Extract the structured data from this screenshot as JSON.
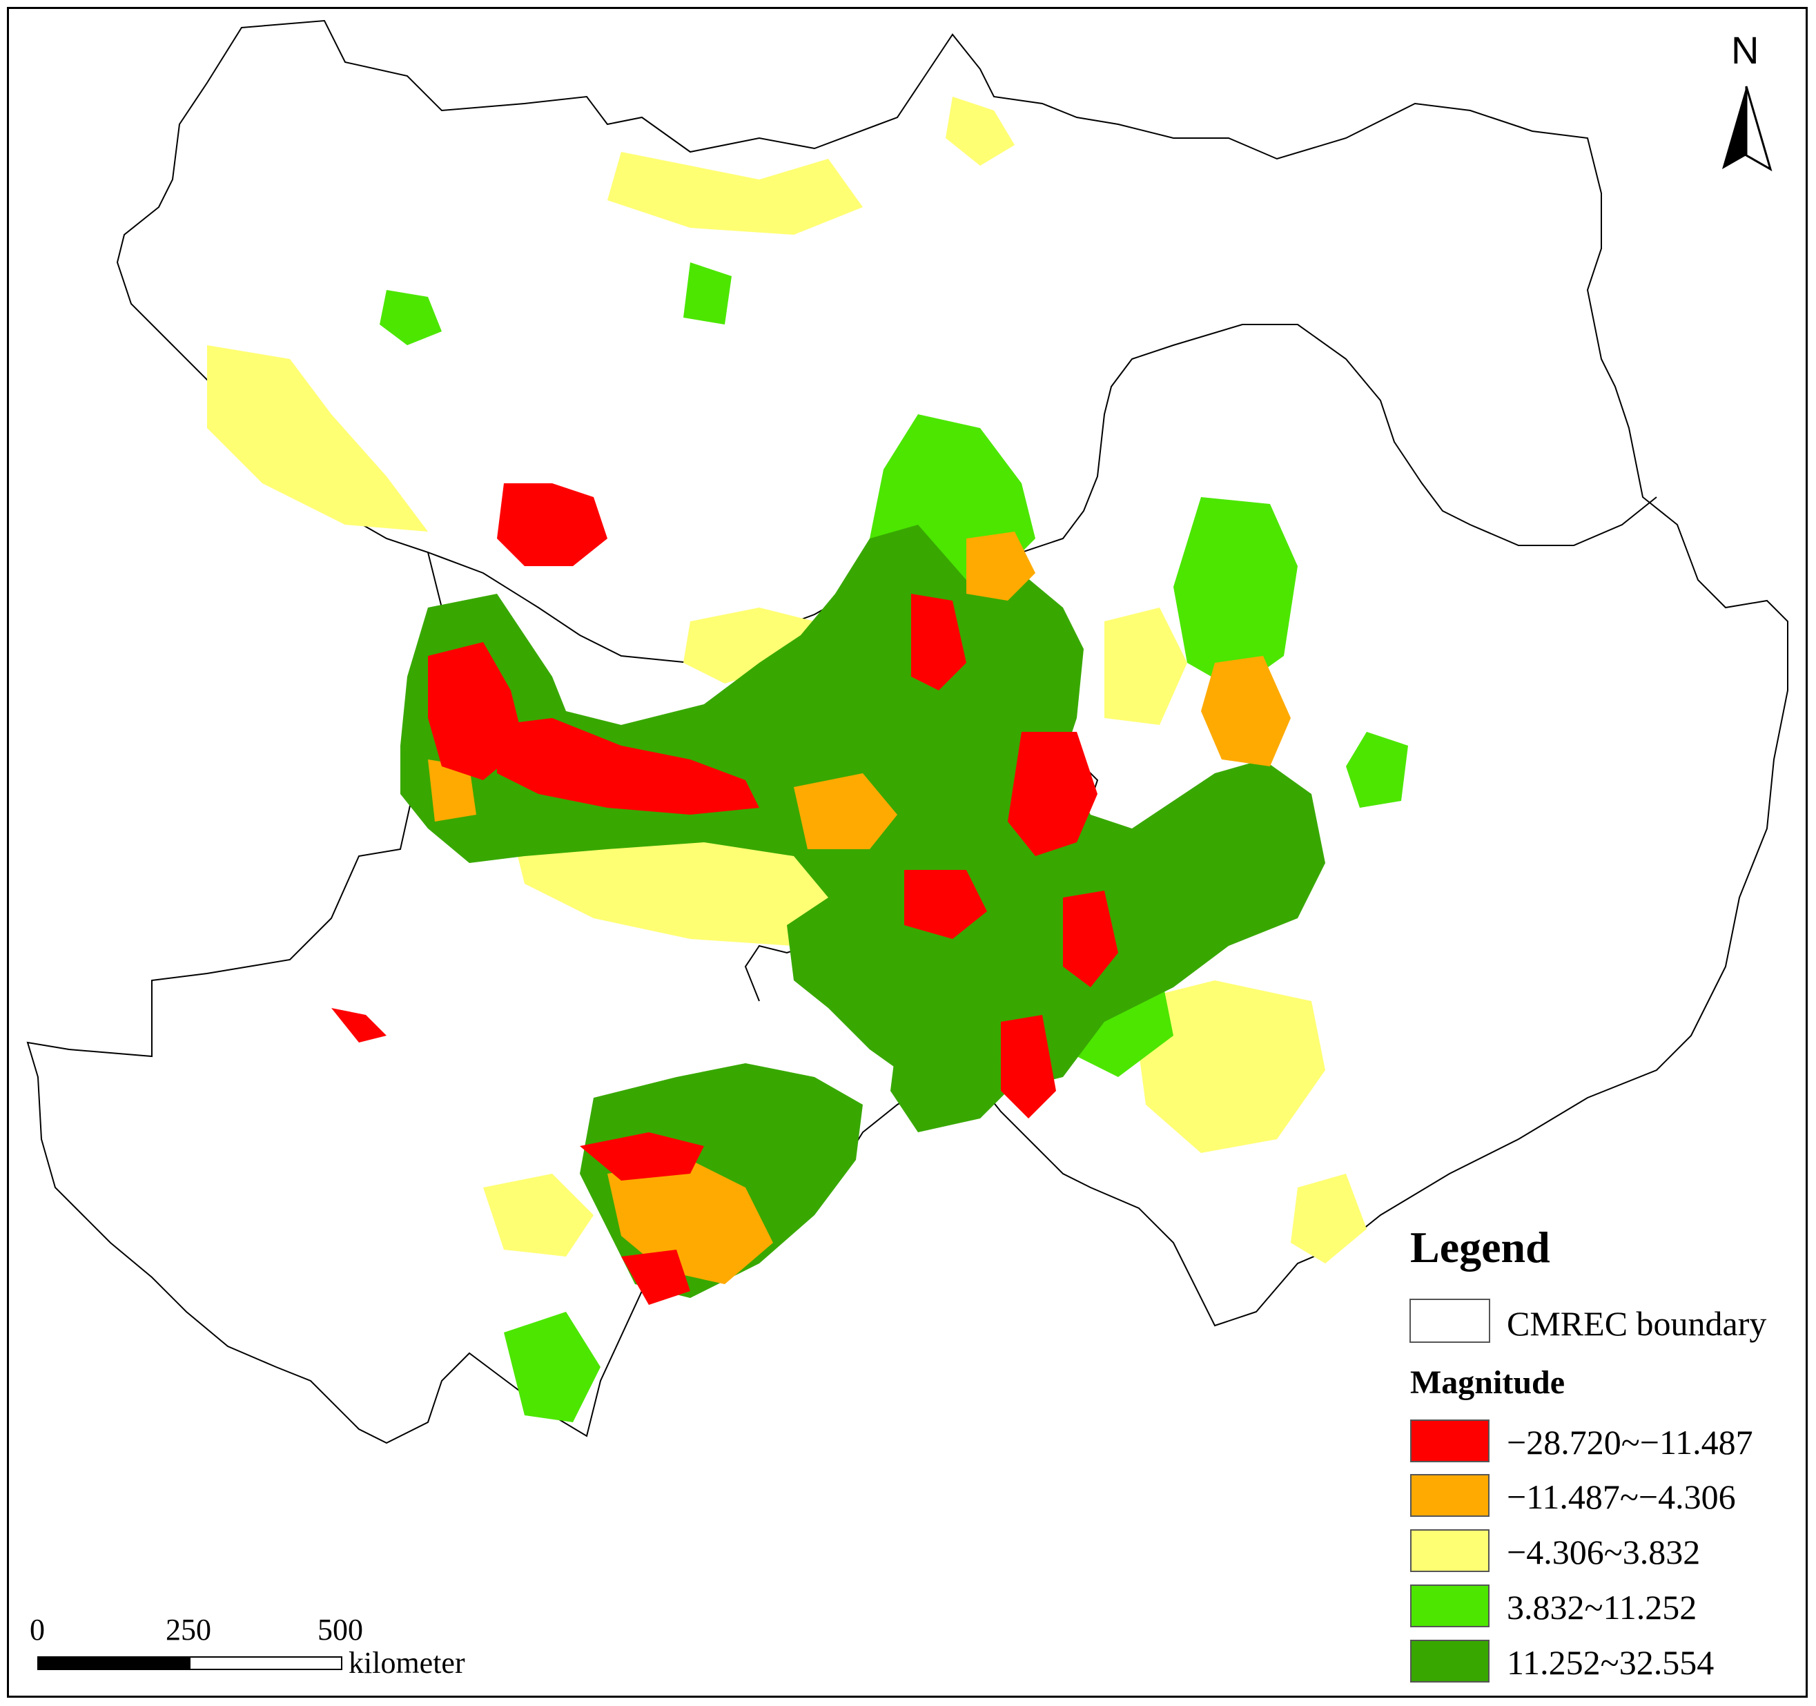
{
  "north": {
    "label": "N",
    "icon": "north-arrow-icon"
  },
  "legend": {
    "title": "Legend",
    "boundary_label": "CMREC boundary",
    "magnitude_title": "Magnitude",
    "classes": [
      {
        "label": "−28.720~−11.487",
        "color": "#ff0000"
      },
      {
        "label": "−11.487~−4.306",
        "color": "#ffaa00"
      },
      {
        "label": "−4.306~3.832",
        "color": "#ffff73"
      },
      {
        "label": "3.832~11.252",
        "color": "#4ce600"
      },
      {
        "label": "11.252~32.554",
        "color": "#38a800"
      }
    ]
  },
  "scale_bar": {
    "ticks": [
      "0",
      "250",
      "500"
    ],
    "unit": "kilometer"
  }
}
